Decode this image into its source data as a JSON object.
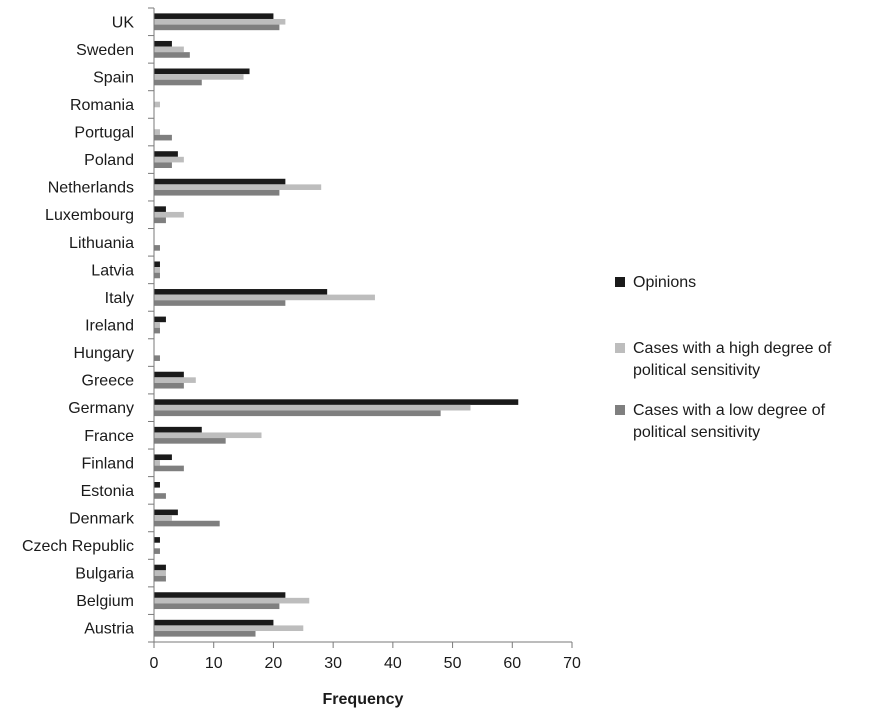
{
  "chart_data": {
    "type": "bar",
    "orientation": "horizontal",
    "title": "",
    "xlabel": "Frequency",
    "ylabel": "",
    "xlim": [
      0,
      70
    ],
    "xticks": [
      0,
      10,
      20,
      30,
      40,
      50,
      60,
      70
    ],
    "grid": false,
    "legend_position": "right",
    "categories": [
      "UK",
      "Sweden",
      "Spain",
      "Romania",
      "Portugal",
      "Poland",
      "Netherlands",
      "Luxembourg",
      "Lithuania",
      "Latvia",
      "Italy",
      "Ireland",
      "Hungary",
      "Greece",
      "Germany",
      "France",
      "Finland",
      "Estonia",
      "Denmark",
      "Czech Republic",
      "Bulgaria",
      "Belgium",
      "Austria"
    ],
    "series": [
      {
        "name": "Opinions",
        "color": "#1a1a1a",
        "values": [
          20,
          3,
          16,
          0,
          0,
          4,
          22,
          2,
          0,
          1,
          29,
          2,
          0,
          5,
          61,
          8,
          3,
          1,
          4,
          1,
          2,
          22,
          20
        ]
      },
      {
        "name": "Cases with a high degree of political sensitivity",
        "color": "#bdbdbd",
        "values": [
          22,
          5,
          15,
          1,
          1,
          5,
          28,
          5,
          0,
          1,
          37,
          1,
          0,
          7,
          53,
          18,
          1,
          0,
          3,
          0,
          2,
          26,
          25
        ]
      },
      {
        "name": "Cases with a low degree of political sensitivity",
        "color": "#7f7f7f",
        "values": [
          21,
          6,
          8,
          0,
          3,
          3,
          21,
          2,
          1,
          1,
          22,
          1,
          1,
          5,
          48,
          12,
          5,
          2,
          11,
          1,
          2,
          21,
          17
        ]
      }
    ]
  },
  "legend": {
    "items": [
      {
        "label": "Opinions",
        "color": "#1a1a1a"
      },
      {
        "label": "Cases with a high degree of political sensitivity",
        "color": "#bdbdbd"
      },
      {
        "label": "Cases with a low degree of political sensitivity",
        "color": "#7f7f7f"
      }
    ]
  }
}
